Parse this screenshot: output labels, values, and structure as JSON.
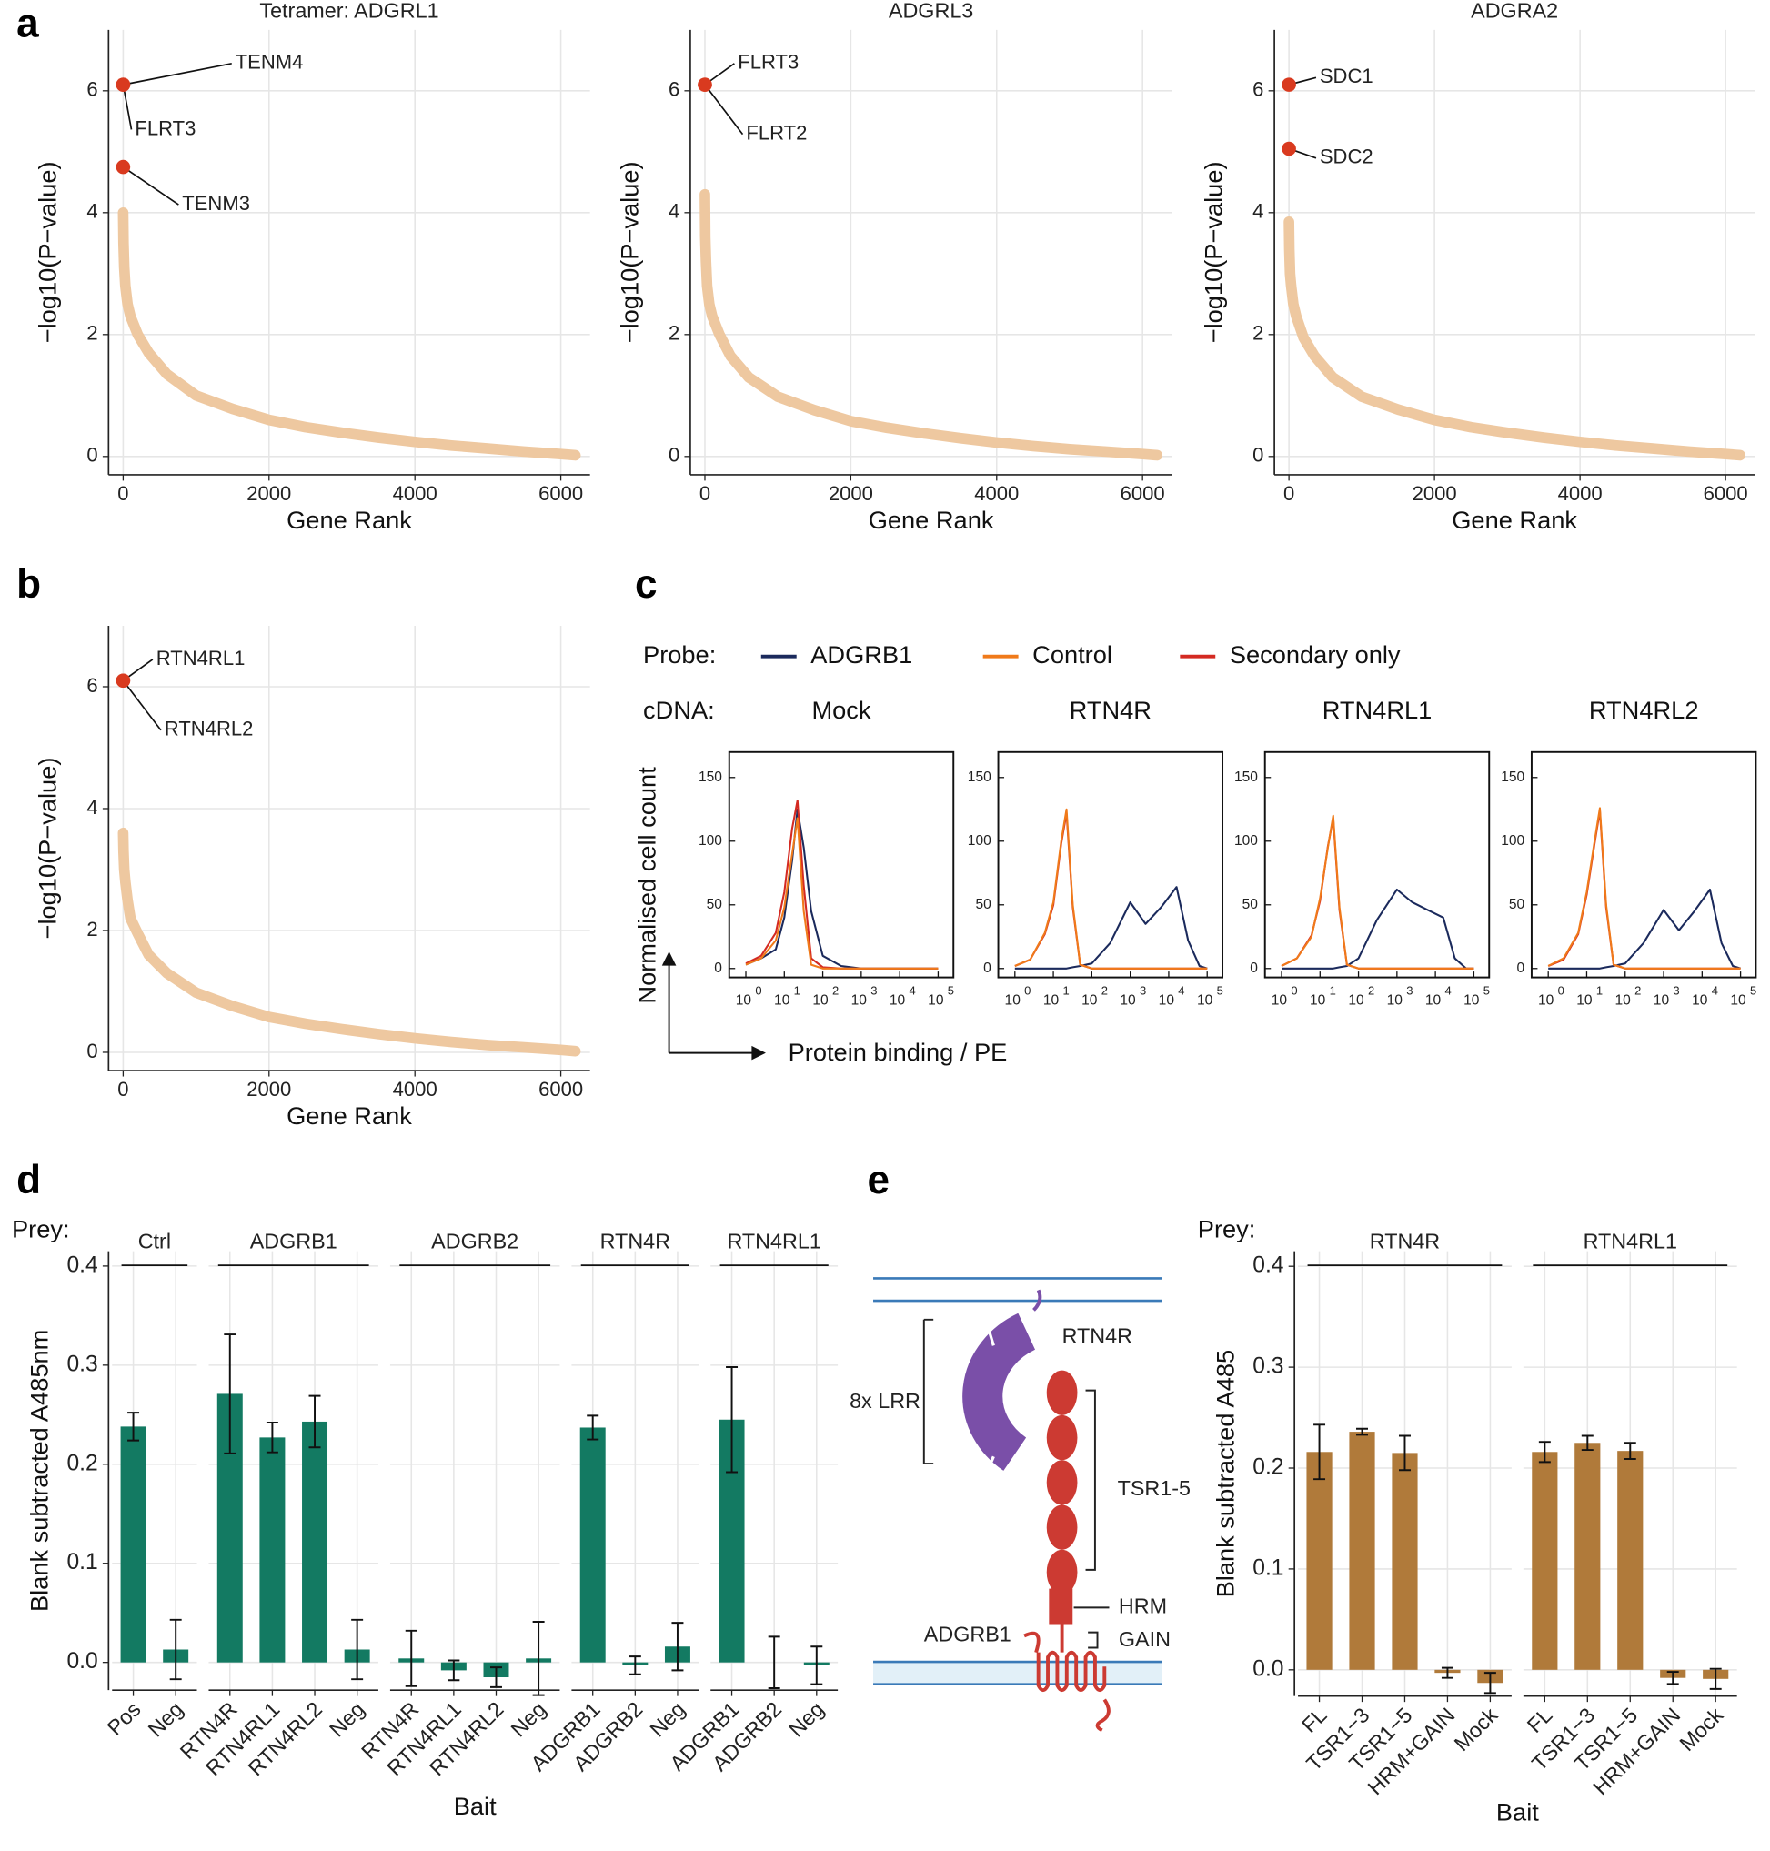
{
  "chart_data": [
    {
      "type": "scatter",
      "panel": "a",
      "title": "Tetramer: ADGRL1",
      "xlabel": "Gene Rank",
      "ylabel": "−log10(P−value)",
      "x": [
        0,
        5,
        15,
        30,
        60,
        100,
        200,
        350,
        600,
        1000,
        1500,
        2000,
        2500,
        3000,
        3500,
        4000,
        4500,
        5000,
        5500,
        6000,
        6200
      ],
      "values": [
        4.0,
        3.5,
        3.1,
        2.8,
        2.5,
        2.3,
        2.0,
        1.7,
        1.35,
        1.0,
        0.78,
        0.6,
        0.48,
        0.39,
        0.31,
        0.24,
        0.18,
        0.13,
        0.08,
        0.04,
        0.02
      ],
      "color": "#eec8a0",
      "highlight_color": "#d93a1f",
      "points": [
        {
          "x": 0,
          "y": 6.1,
          "label": "TENM4"
        },
        {
          "x": 0,
          "y": 6.1,
          "label": "FLRT3"
        },
        {
          "x": 0,
          "y": 4.75,
          "label": "TENM3"
        }
      ],
      "xlim": [
        -200,
        6400
      ],
      "ylim": [
        -0.3,
        7
      ],
      "xticks": [
        0,
        2000,
        4000,
        6000
      ],
      "yticks": [
        0,
        2,
        4,
        6
      ],
      "grid": true
    },
    {
      "type": "scatter",
      "title": "ADGRL3",
      "xlabel": "Gene Rank",
      "ylabel": "−log10(P−value)",
      "x": [
        0,
        5,
        15,
        30,
        60,
        100,
        200,
        350,
        600,
        1000,
        1500,
        2000,
        2500,
        3000,
        3500,
        4000,
        4500,
        5000,
        5500,
        6000,
        6200
      ],
      "values": [
        4.3,
        3.6,
        3.2,
        2.8,
        2.5,
        2.3,
        2.0,
        1.65,
        1.3,
        0.98,
        0.76,
        0.58,
        0.47,
        0.38,
        0.3,
        0.23,
        0.17,
        0.12,
        0.08,
        0.04,
        0.02
      ],
      "color": "#eec8a0",
      "highlight_color": "#d93a1f",
      "points": [
        {
          "x": 0,
          "y": 6.1,
          "label": "FLRT3"
        },
        {
          "x": 0,
          "y": 6.1,
          "label": "FLRT2"
        }
      ],
      "xlim": [
        -200,
        6400
      ],
      "ylim": [
        -0.3,
        7
      ],
      "xticks": [
        0,
        2000,
        4000,
        6000
      ],
      "yticks": [
        0,
        2,
        4,
        6
      ],
      "grid": true
    },
    {
      "type": "scatter",
      "title": "ADGRA2",
      "xlabel": "Gene Rank",
      "ylabel": "−log10(P−value)",
      "x": [
        0,
        5,
        15,
        30,
        60,
        100,
        200,
        350,
        600,
        1000,
        1500,
        2000,
        2500,
        3000,
        3500,
        4000,
        4500,
        5000,
        5500,
        6000,
        6200
      ],
      "values": [
        3.85,
        3.4,
        3.0,
        2.8,
        2.5,
        2.3,
        1.95,
        1.65,
        1.3,
        0.98,
        0.77,
        0.6,
        0.48,
        0.39,
        0.31,
        0.24,
        0.18,
        0.13,
        0.08,
        0.04,
        0.02
      ],
      "color": "#eec8a0",
      "highlight_color": "#d93a1f",
      "points": [
        {
          "x": 0,
          "y": 6.1,
          "label": "SDC1"
        },
        {
          "x": 0,
          "y": 5.05,
          "label": "SDC2"
        }
      ],
      "xlim": [
        -200,
        6400
      ],
      "ylim": [
        -0.3,
        7
      ],
      "xticks": [
        0,
        2000,
        4000,
        6000
      ],
      "yticks": [
        0,
        2,
        4,
        6
      ],
      "grid": true
    },
    {
      "type": "scatter",
      "panel": "b",
      "xlabel": "Gene Rank",
      "ylabel": "−log10(P−value)",
      "x": [
        0,
        5,
        15,
        30,
        60,
        100,
        200,
        350,
        600,
        1000,
        1500,
        2000,
        2500,
        3000,
        3500,
        4000,
        4500,
        5000,
        5500,
        6000,
        6200
      ],
      "values": [
        3.6,
        3.3,
        3.0,
        2.8,
        2.5,
        2.2,
        1.95,
        1.6,
        1.3,
        0.98,
        0.76,
        0.58,
        0.47,
        0.38,
        0.3,
        0.23,
        0.17,
        0.12,
        0.08,
        0.04,
        0.02
      ],
      "color": "#eec8a0",
      "highlight_color": "#d93a1f",
      "points": [
        {
          "x": 0,
          "y": 6.1,
          "label": "RTN4RL1"
        },
        {
          "x": 0,
          "y": 6.1,
          "label": "RTN4RL2"
        }
      ],
      "xlim": [
        -200,
        6400
      ],
      "ylim": [
        -0.3,
        7
      ],
      "xticks": [
        0,
        2000,
        4000,
        6000
      ],
      "yticks": [
        0,
        2,
        4,
        6
      ],
      "grid": true
    },
    {
      "type": "histogram",
      "panel": "c",
      "legend_title": "Probe:",
      "facet_title": "cDNA:",
      "ylabel": "Normalised cell count",
      "xlabel": "Protein binding / PE",
      "facets": [
        "Mock",
        "RTN4R",
        "RTN4RL1",
        "RTN4RL2"
      ],
      "xscale": "log",
      "x": [
        1,
        2.5,
        6,
        10,
        16,
        22,
        32,
        50,
        100,
        300,
        1000,
        2500,
        6300,
        16000,
        32000,
        63000,
        100000
      ],
      "series": [
        {
          "name": "ADGRB1",
          "color": "#1b2a5c",
          "values": [
            [
              3,
              8,
              15,
              40,
              85,
              125,
              95,
              45,
              10,
              2,
              0,
              0,
              0,
              0,
              0,
              0,
              0
            ],
            [
              0,
              0,
              0,
              0,
              0,
              0,
              1,
              2,
              4,
              20,
              52,
              35,
              48,
              64,
              22,
              2,
              0
            ],
            [
              0,
              0,
              0,
              0,
              0,
              0,
              1,
              2,
              8,
              38,
              62,
              52,
              46,
              40,
              8,
              0,
              0
            ],
            [
              0,
              0,
              0,
              0,
              0,
              0,
              1,
              2,
              4,
              20,
              46,
              30,
              45,
              62,
              20,
              2,
              0
            ]
          ]
        },
        {
          "name": "Control",
          "color": "#f07a1a",
          "values": [
            [
              3,
              8,
              22,
              48,
              90,
              118,
              45,
              3,
              0,
              0,
              0,
              0,
              0,
              0,
              0,
              0,
              0
            ],
            [
              2,
              7,
              28,
              52,
              100,
              125,
              50,
              3,
              0,
              0,
              0,
              0,
              0,
              0,
              0,
              0,
              0
            ],
            [
              2,
              8,
              25,
              55,
              95,
              120,
              48,
              3,
              0,
              0,
              0,
              0,
              0,
              0,
              0,
              0,
              0
            ],
            [
              2,
              8,
              28,
              60,
              100,
              126,
              50,
              3,
              0,
              0,
              0,
              0,
              0,
              0,
              0,
              0,
              0
            ]
          ]
        },
        {
          "name": "Secondary only",
          "color": "#d42a22",
          "values": [
            [
              4,
              10,
              28,
              60,
              110,
              132,
              65,
              8,
              1,
              0,
              0,
              0,
              0,
              0,
              0,
              0,
              0
            ],
            [
              2,
              7,
              27,
              50,
              98,
              122,
              48,
              3,
              0,
              0,
              0,
              0,
              0,
              0,
              0,
              0,
              0
            ],
            [
              2,
              8,
              26,
              53,
              96,
              118,
              46,
              3,
              0,
              0,
              0,
              0,
              0,
              0,
              0,
              0,
              0
            ],
            [
              2,
              7,
              27,
              58,
              98,
              124,
              48,
              3,
              0,
              0,
              0,
              0,
              0,
              0,
              0,
              0,
              0
            ]
          ]
        }
      ],
      "xlim": [
        0.37,
        250000
      ],
      "ylim": [
        -7,
        170
      ],
      "xticks": [
        {
          "value": 1,
          "label": "10",
          "exponent": "0"
        },
        {
          "value": 10,
          "label": "10",
          "exponent": "1"
        },
        {
          "value": 100,
          "label": "10",
          "exponent": "2"
        },
        {
          "value": 1000,
          "label": "10",
          "exponent": "3"
        },
        {
          "value": 10000,
          "label": "10",
          "exponent": "4"
        },
        {
          "value": 100000,
          "label": "10",
          "exponent": "5"
        }
      ],
      "yticks": [
        0,
        50,
        100,
        150
      ]
    },
    {
      "type": "bar",
      "panel": "d",
      "facet_title": "Prey:",
      "ylabel": "Blank subtracted A485nm",
      "xlabel": "Bait",
      "color": "#137a62",
      "facets": [
        {
          "name": "Ctrl",
          "categories": [
            "Pos",
            "Neg"
          ],
          "values": [
            0.238,
            0.013
          ],
          "errors": [
            0.014,
            0.03
          ]
        },
        {
          "name": "ADGRB1",
          "categories": [
            "RTN4R",
            "RTN4RL1",
            "RTN4RL2",
            "Neg"
          ],
          "values": [
            0.271,
            0.227,
            0.243,
            0.013
          ],
          "errors": [
            0.06,
            0.015,
            0.026,
            0.03
          ]
        },
        {
          "name": "ADGRB2",
          "categories": [
            "RTN4R",
            "RTN4RL1",
            "RTN4RL2",
            "Neg"
          ],
          "values": [
            0.004,
            -0.008,
            -0.015,
            0.004
          ],
          "errors": [
            0.028,
            0.01,
            0.01,
            0.037
          ]
        },
        {
          "name": "RTN4R",
          "categories": [
            "ADGRB1",
            "ADGRB2",
            "Neg"
          ],
          "values": [
            0.237,
            -0.003,
            0.016
          ],
          "errors": [
            0.012,
            0.009,
            0.024
          ]
        },
        {
          "name": "RTN4RL1",
          "categories": [
            "ADGRB1",
            "ADGRB2",
            "Neg"
          ],
          "values": [
            0.245,
            0.0,
            -0.003
          ],
          "errors": [
            0.053,
            0.026,
            0.019
          ]
        }
      ],
      "ylim": [
        -0.028,
        0.415
      ],
      "yticks": [
        {
          "value": 0,
          "label": "0.0"
        },
        0.1,
        0.2,
        0.3,
        0.4
      ],
      "grid": true
    },
    {
      "type": "bar",
      "panel": "e",
      "facet_title": "Prey:",
      "ylabel": "Blank subtracted A485",
      "xlabel": "Bait",
      "color": "#b07a3a",
      "facets": [
        {
          "name": "RTN4R",
          "categories": [
            "FL",
            "TSR1−3",
            "TSR1−5",
            "HRM+GAIN",
            "Mock"
          ],
          "values": [
            0.216,
            0.236,
            0.215,
            -0.003,
            -0.013
          ],
          "errors": [
            0.027,
            0.003,
            0.017,
            0.005,
            0.01
          ]
        },
        {
          "name": "RTN4RL1",
          "categories": [
            "FL",
            "TSR1−3",
            "TSR1−5",
            "HRM+GAIN",
            "Mock"
          ],
          "values": [
            0.216,
            0.225,
            0.217,
            -0.008,
            -0.009
          ],
          "errors": [
            0.01,
            0.007,
            0.008,
            0.006,
            0.01
          ]
        }
      ],
      "ylim": [
        -0.026,
        0.415
      ],
      "yticks": [
        {
          "value": 0,
          "label": "0.0"
        },
        0.1,
        0.2,
        0.3,
        0.4
      ],
      "grid": true
    }
  ],
  "diagram": {
    "rtn4r": "RTN4R",
    "lrr": "8x LRR",
    "tsr": "TSR1-5",
    "hrm": "HRM",
    "gain": "GAIN",
    "adgrb1": "ADGRB1"
  }
}
